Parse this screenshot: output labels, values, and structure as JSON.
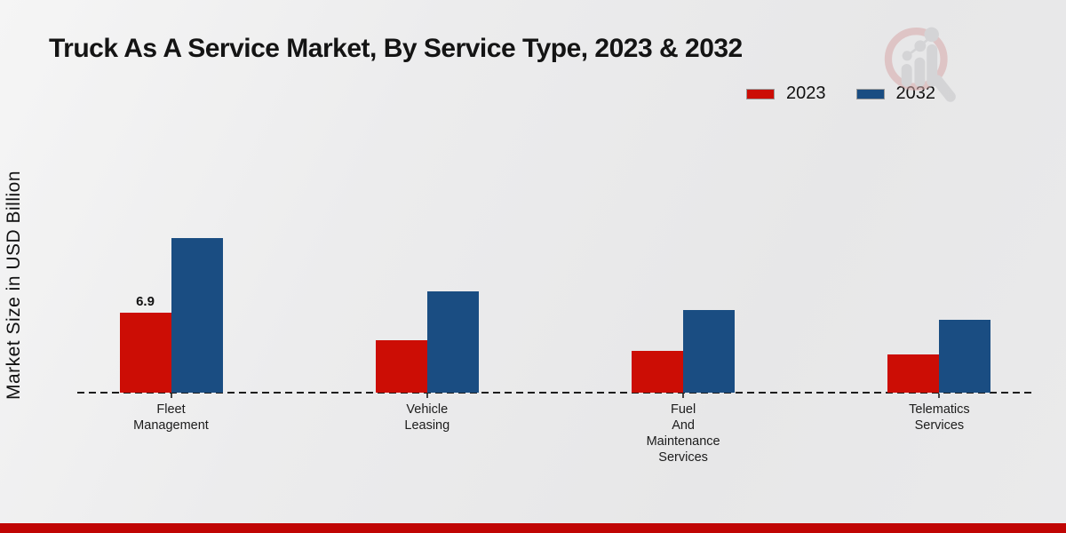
{
  "title": "Truck As A Service Market, By Service Type, 2023 & 2032",
  "ylabel": "Market Size in USD Billion",
  "legend": [
    {
      "label": "2023",
      "color": "#cc0d05"
    },
    {
      "label": "2032",
      "color": "#1a4d82"
    }
  ],
  "colors": {
    "bar_2023": "#cc0d05",
    "bar_2032": "#1a4d82",
    "baseline": "#1d1d1d",
    "footer_strip": "#c00504",
    "title_text": "#141414",
    "watermark_ring": "#d8a9a9",
    "watermark_gray": "#c6c6c8"
  },
  "icons": {
    "watermark": "chart-magnifier-logo-icon"
  },
  "chart_data": {
    "type": "bar",
    "title": "Truck As A Service Market, By Service Type, 2023 & 2032",
    "xlabel": "",
    "ylabel": "Market Size in USD Billion",
    "categories": [
      "Fleet Management",
      "Vehicle Leasing",
      "Fuel And Maintenance Services",
      "Telematics Services"
    ],
    "categories_wrapped": [
      [
        "Fleet",
        "Management"
      ],
      [
        "Vehicle",
        "Leasing"
      ],
      [
        "Fuel",
        "And",
        "Maintenance",
        "Services"
      ],
      [
        "Telematics",
        "Services"
      ]
    ],
    "series": [
      {
        "name": "2023",
        "color": "#cc0d05",
        "values": [
          6.9,
          4.5,
          3.6,
          3.3
        ]
      },
      {
        "name": "2032",
        "color": "#1a4d82",
        "values": [
          13.3,
          8.7,
          7.1,
          6.3
        ]
      }
    ],
    "data_labels": [
      {
        "series_index": 0,
        "category_index": 0,
        "text": "6.9"
      }
    ],
    "ylim": [
      0,
      14
    ],
    "grid": false,
    "legend_position": "top-right",
    "axis_style": "dashed-baseline-only"
  }
}
